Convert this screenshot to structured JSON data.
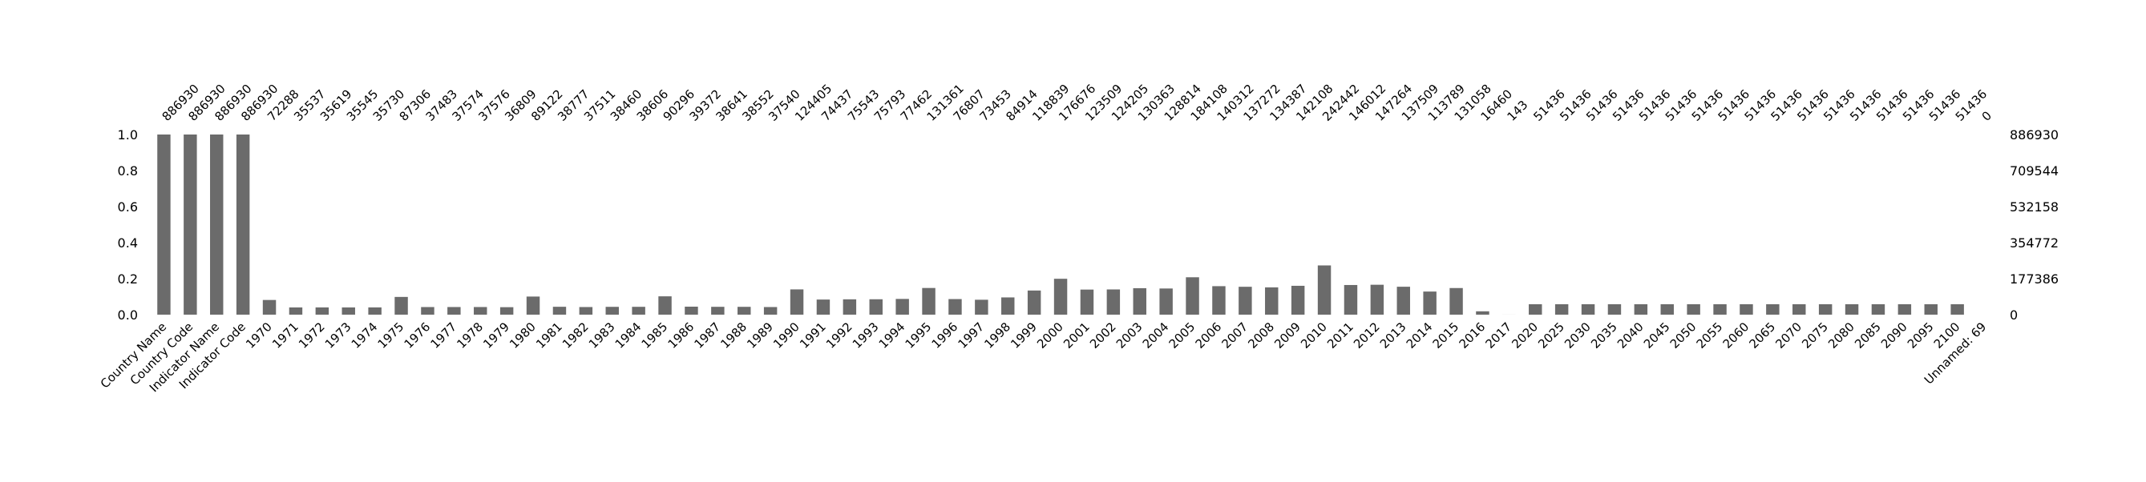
{
  "chart_data": {
    "type": "bar",
    "title": "",
    "xlabel": "",
    "ylabel": "",
    "ylim": [
      0,
      1
    ],
    "yticks": [
      "0.0",
      "0.2",
      "0.4",
      "0.6",
      "0.8",
      "1.0"
    ],
    "right_axis_labels": [
      "0",
      "177386",
      "354772",
      "532158",
      "709544",
      "886930"
    ],
    "bar_color": "#6b6b6b",
    "grid": false,
    "total_rows": 886930,
    "categories": [
      "Country Name",
      "Country Code",
      "Indicator Name",
      "Indicator Code",
      "1970",
      "1971",
      "1972",
      "1973",
      "1974",
      "1975",
      "1976",
      "1977",
      "1978",
      "1979",
      "1980",
      "1981",
      "1982",
      "1983",
      "1984",
      "1985",
      "1986",
      "1987",
      "1988",
      "1989",
      "1990",
      "1991",
      "1992",
      "1993",
      "1994",
      "1995",
      "1996",
      "1997",
      "1998",
      "1999",
      "2000",
      "2001",
      "2002",
      "2003",
      "2004",
      "2005",
      "2006",
      "2007",
      "2008",
      "2009",
      "2010",
      "2011",
      "2012",
      "2013",
      "2014",
      "2015",
      "2016",
      "2017",
      "2020",
      "2025",
      "2030",
      "2035",
      "2040",
      "2045",
      "2050",
      "2055",
      "2060",
      "2065",
      "2070",
      "2075",
      "2080",
      "2085",
      "2090",
      "2095",
      "2100",
      "Unnamed: 69"
    ],
    "counts": [
      886930,
      886930,
      886930,
      886930,
      72288,
      35537,
      35619,
      35545,
      35730,
      87306,
      37483,
      37574,
      37576,
      36809,
      89122,
      38777,
      37511,
      38460,
      38606,
      90296,
      39372,
      38641,
      38552,
      37540,
      124405,
      74437,
      75543,
      75793,
      77462,
      131361,
      76807,
      73453,
      84914,
      118839,
      176676,
      123509,
      124205,
      130363,
      128814,
      184108,
      140312,
      137272,
      134387,
      142108,
      242442,
      146012,
      147264,
      137509,
      113789,
      131058,
      16460,
      143,
      51436,
      51436,
      51436,
      51436,
      51436,
      51436,
      51436,
      51436,
      51436,
      51436,
      51436,
      51436,
      51436,
      51436,
      51436,
      51436,
      51436,
      0
    ]
  }
}
